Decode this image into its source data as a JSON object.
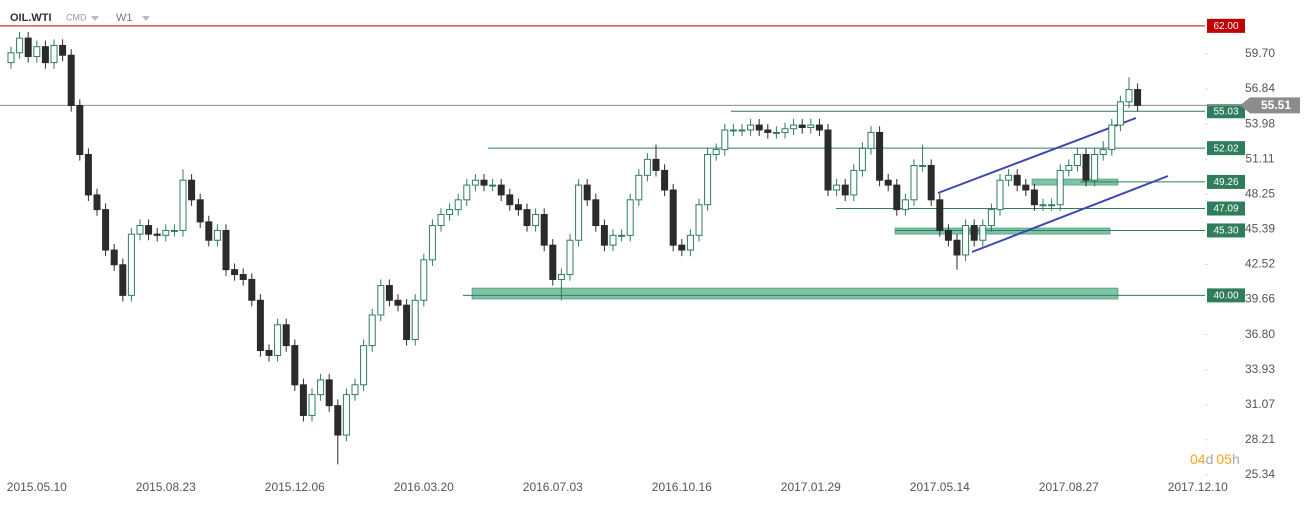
{
  "chart_data": {
    "type": "candlestick",
    "title": "OIL.WTI",
    "market": "CMD",
    "timeframe": "W1",
    "timer": [
      "04",
      "d",
      "05",
      "h"
    ],
    "categories": [
      null,
      null,
      null,
      "2015.05.10",
      null,
      null,
      null,
      null,
      null,
      null,
      null,
      null,
      null,
      null,
      null,
      null,
      null,
      null,
      "2015.08.23",
      null,
      null,
      null,
      null,
      null,
      null,
      null,
      null,
      null,
      null,
      null,
      null,
      null,
      null,
      "2015.12.06",
      null,
      null,
      null,
      null,
      null,
      null,
      null,
      null,
      null,
      null,
      null,
      null,
      null,
      null,
      "2016.03.20",
      null,
      null,
      null,
      null,
      null,
      null,
      null,
      null,
      null,
      null,
      null,
      null,
      null,
      null,
      "2016.07.03",
      null,
      null,
      null,
      null,
      null,
      null,
      null,
      null,
      null,
      null,
      null,
      null,
      null,
      null,
      "2016.10.16",
      null,
      null,
      null,
      null,
      null,
      null,
      null,
      null,
      null,
      null,
      null,
      null,
      null,
      null,
      "2017.01.29",
      null,
      null,
      null,
      null,
      null,
      null,
      null,
      null,
      null,
      null,
      null,
      null,
      null,
      null,
      "2017.05.14",
      null,
      null,
      null,
      null,
      null,
      null,
      null,
      null,
      null,
      null,
      null,
      null,
      null,
      null,
      "2017.08.27",
      null,
      null,
      null,
      null,
      null,
      null,
      null,
      null,
      null,
      null,
      null,
      null,
      null,
      null,
      "2017.12.10"
    ],
    "open": [
      59.0,
      59.8,
      61.0,
      59.5,
      60.3,
      59.0,
      60.4,
      59.6,
      55.5,
      51.5,
      48.2,
      47.0,
      43.7,
      42.5,
      40.0,
      45.0,
      45.7,
      45.0,
      44.9,
      45.3,
      45.3,
      49.4,
      47.8,
      46.0,
      44.5,
      45.3,
      42.1,
      41.7,
      41.3,
      39.6,
      35.5,
      35.1,
      37.6,
      35.9,
      32.7,
      30.2,
      31.9,
      33.1,
      31.0,
      28.6,
      31.9,
      32.7,
      35.9,
      38.4,
      40.8,
      39.6,
      39.2,
      36.4,
      39.6,
      42.9,
      45.7,
      46.6,
      47.0,
      47.8,
      49.0,
      49.4,
      49.0,
      49.0,
      48.2,
      47.4,
      47.0,
      45.7,
      46.6,
      44.1,
      41.3,
      41.7,
      44.5,
      49.0,
      47.8,
      45.7,
      44.1,
      44.9,
      44.9,
      47.8,
      49.8,
      51.1,
      50.2,
      48.6,
      44.1,
      43.7,
      44.9,
      47.4,
      51.5,
      51.9,
      53.5,
      53.5,
      53.5,
      53.9,
      53.5,
      53.3,
      53.3,
      53.6,
      53.9,
      53.7,
      53.9,
      53.5,
      48.6,
      49.0,
      48.2,
      50.2,
      52.0,
      53.3,
      49.4,
      49.0,
      47.0,
      47.8,
      50.6,
      50.6,
      47.8,
      45.3,
      44.5,
      43.3,
      45.7,
      44.5,
      45.7,
      47.0,
      49.4,
      49.8,
      49.0,
      48.6,
      47.4,
      47.4,
      47.4,
      50.2,
      50.6,
      51.5,
      49.4,
      51.5,
      51.9,
      53.9,
      55.8,
      56.8,
      null,
      null,
      null,
      null,
      null,
      null,
      null
    ],
    "high": [
      60.3,
      61.5,
      61.5,
      60.8,
      60.8,
      60.9,
      60.9,
      60.1,
      56.0,
      52.0,
      48.7,
      47.5,
      44.2,
      43.0,
      45.5,
      46.2,
      46.2,
      45.5,
      45.8,
      45.8,
      50.3,
      49.9,
      48.3,
      46.5,
      45.8,
      45.8,
      42.6,
      42.2,
      41.8,
      40.1,
      36.0,
      38.1,
      38.1,
      36.4,
      33.2,
      32.4,
      33.6,
      33.6,
      31.5,
      32.4,
      33.2,
      36.4,
      38.9,
      41.3,
      41.3,
      40.1,
      39.7,
      40.1,
      43.4,
      46.2,
      47.1,
      47.5,
      48.3,
      49.5,
      49.9,
      49.9,
      49.5,
      49.5,
      48.7,
      47.9,
      47.5,
      47.1,
      47.1,
      44.6,
      42.2,
      45.0,
      49.5,
      49.5,
      48.3,
      46.2,
      45.4,
      45.4,
      48.3,
      50.3,
      51.6,
      52.3,
      50.7,
      49.1,
      44.6,
      45.4,
      47.9,
      52.0,
      52.4,
      54.0,
      54.0,
      54.0,
      54.4,
      54.4,
      54.0,
      53.8,
      54.1,
      54.4,
      54.4,
      54.4,
      54.4,
      54.0,
      49.5,
      49.5,
      50.7,
      52.5,
      53.8,
      53.8,
      49.9,
      49.5,
      48.3,
      51.1,
      52.3,
      51.1,
      48.3,
      45.8,
      45.0,
      46.2,
      46.2,
      46.2,
      47.5,
      49.9,
      50.3,
      50.3,
      49.5,
      49.1,
      47.9,
      47.9,
      50.7,
      51.1,
      52.0,
      52.0,
      52.0,
      52.6,
      54.4,
      56.3,
      57.8,
      57.3,
      null,
      null,
      null,
      null,
      null,
      null,
      null
    ],
    "low": [
      58.5,
      59.3,
      59.0,
      59.0,
      58.5,
      58.5,
      59.1,
      55.0,
      51.0,
      47.7,
      46.5,
      43.2,
      42.0,
      39.5,
      39.5,
      44.5,
      44.5,
      44.4,
      44.4,
      44.8,
      44.8,
      47.3,
      45.5,
      44.0,
      44.0,
      41.6,
      41.2,
      40.8,
      39.1,
      35.0,
      34.6,
      34.6,
      35.4,
      32.2,
      29.7,
      29.7,
      31.4,
      30.5,
      26.2,
      28.1,
      31.4,
      32.2,
      35.4,
      37.9,
      39.1,
      38.7,
      35.9,
      35.9,
      39.1,
      42.4,
      45.2,
      46.1,
      46.5,
      47.3,
      48.5,
      48.5,
      48.5,
      47.7,
      46.9,
      46.5,
      45.2,
      45.2,
      43.6,
      40.8,
      39.6,
      41.2,
      44.0,
      47.3,
      45.2,
      43.6,
      43.6,
      44.4,
      44.4,
      47.3,
      49.3,
      49.7,
      48.1,
      43.6,
      43.2,
      43.2,
      44.4,
      46.9,
      51.0,
      51.4,
      53.0,
      53.0,
      53.0,
      53.0,
      52.8,
      52.8,
      52.8,
      53.1,
      53.2,
      53.2,
      53.0,
      48.1,
      48.1,
      47.7,
      47.7,
      49.7,
      51.5,
      48.9,
      48.5,
      46.5,
      46.5,
      47.3,
      50.1,
      47.3,
      44.8,
      44.0,
      42.1,
      42.8,
      44.0,
      44.0,
      45.2,
      46.5,
      48.9,
      48.5,
      48.1,
      46.9,
      46.9,
      46.9,
      46.9,
      49.7,
      50.1,
      48.9,
      48.9,
      51.0,
      51.4,
      53.4,
      55.3,
      55.0,
      null,
      null,
      null,
      null,
      null,
      null,
      null
    ],
    "close": [
      59.8,
      61.0,
      59.5,
      60.3,
      59.0,
      60.4,
      59.6,
      55.5,
      51.5,
      48.2,
      47.0,
      43.7,
      42.5,
      40.0,
      45.0,
      45.7,
      45.0,
      44.9,
      45.3,
      45.3,
      49.4,
      47.8,
      46.0,
      44.5,
      45.3,
      42.1,
      41.7,
      41.3,
      39.6,
      35.5,
      35.1,
      37.6,
      35.9,
      32.7,
      30.2,
      31.9,
      33.1,
      31.0,
      28.6,
      31.9,
      32.7,
      35.9,
      38.4,
      40.8,
      39.6,
      39.2,
      36.4,
      39.6,
      42.9,
      45.7,
      46.6,
      47.0,
      47.8,
      49.0,
      49.4,
      49.0,
      49.0,
      48.2,
      47.4,
      47.0,
      45.7,
      46.6,
      44.1,
      41.3,
      41.7,
      44.5,
      49.0,
      47.8,
      45.7,
      44.1,
      44.9,
      44.9,
      47.8,
      49.8,
      51.1,
      50.2,
      48.6,
      44.1,
      43.7,
      44.9,
      47.4,
      51.5,
      51.9,
      53.5,
      53.5,
      53.5,
      53.9,
      53.5,
      53.3,
      53.3,
      53.6,
      53.9,
      53.7,
      53.9,
      53.5,
      48.6,
      49.0,
      48.2,
      50.2,
      52.0,
      53.3,
      49.4,
      49.0,
      47.0,
      47.8,
      50.6,
      50.6,
      47.8,
      45.3,
      44.5,
      43.3,
      45.7,
      44.5,
      45.7,
      47.0,
      49.4,
      49.8,
      49.0,
      48.6,
      47.4,
      47.4,
      47.4,
      50.2,
      50.6,
      51.5,
      49.4,
      51.5,
      51.9,
      53.9,
      55.8,
      56.8,
      55.51,
      null,
      null,
      null,
      null,
      null,
      null,
      null
    ],
    "up_color": "#2f7d5c",
    "down_color": "#2b2b2b",
    "ylim": [
      24.93,
      64.11
    ],
    "yticks": [
      {
        "value": 59.7,
        "label": "59.70"
      },
      56.84,
      53.98,
      51.11,
      48.25,
      45.39,
      42.52,
      39.66,
      {
        "value": 36.8,
        "label": "36.80"
      },
      33.93,
      31.07,
      28.21,
      25.34
    ],
    "levels": [
      55.03,
      52.02,
      49.26,
      47.09,
      {
        "value": 45.3,
        "label": "45.30"
      },
      {
        "value": 40,
        "label": "40.00"
      }
    ],
    "level_color": "#2f7d5c",
    "zones": [
      {
        "low": 39.7,
        "high": 40.6
      },
      {
        "low": 45.0,
        "high": 45.5
      },
      {
        "low": 49.0,
        "high": 49.5
      }
    ],
    "zone_color": "#7cc4a6",
    "resistance": {
      "value": 62,
      "label": "62.00"
    },
    "resistance_color": "#c00000",
    "current_price": 55.51,
    "current_color": "#8c8c8c",
    "channel_color": "#3d47b3"
  }
}
